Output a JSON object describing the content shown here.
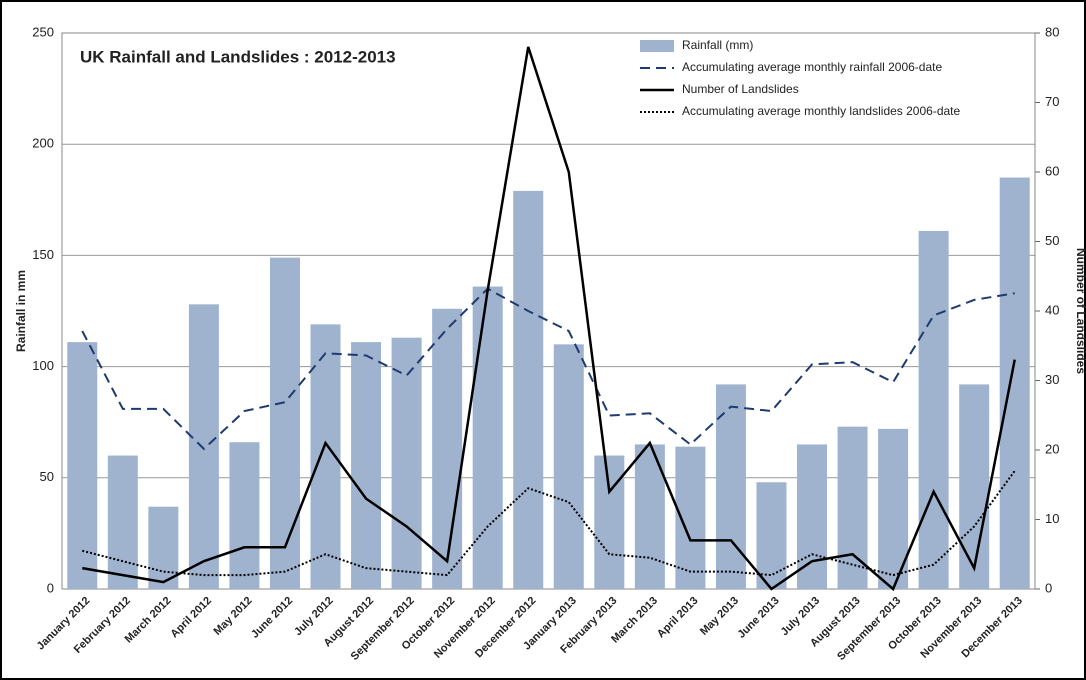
{
  "chart_data": {
    "type": "bar-line",
    "title": "UK Rainfall and Landslides : 2012-2013",
    "ylabel": "Rainfall in mm",
    "y2label": "Number of Landslides",
    "categories": [
      "January 2012",
      "February 2012",
      "March 2012",
      "April 2012",
      "May 2012",
      "June 2012",
      "July 2012",
      "August 2012",
      "September 2012",
      "October 2012",
      "November 2012",
      "December 2012",
      "January 2013",
      "February 2013",
      "March 2013",
      "April 2013",
      "May 2013",
      "June 2013",
      "July 2013",
      "August 2013",
      "September 2013",
      "October 2013",
      "November 2013",
      "December 2013"
    ],
    "series": [
      {
        "name": "Rainfall (mm)",
        "type": "bar",
        "color": "#9fb3cf",
        "axis": "y",
        "values": [
          111,
          60,
          37,
          128,
          66,
          149,
          119,
          111,
          113,
          126,
          136,
          179,
          110,
          60,
          65,
          64,
          92,
          48,
          65,
          73,
          72,
          161,
          92,
          185
        ]
      },
      {
        "name": "Accumulating average monthly rainfall 2006-date",
        "type": "line",
        "style": "dashed",
        "color": "#1f3a6e",
        "axis": "y",
        "values": [
          116,
          81,
          81,
          63,
          80,
          84,
          106,
          105,
          96,
          117,
          135,
          125,
          116,
          78,
          79,
          65,
          82,
          80,
          101,
          102,
          93,
          123,
          130,
          133
        ]
      },
      {
        "name": "Number of Landslides",
        "type": "line",
        "style": "solid",
        "color": "#000000",
        "axis": "y2",
        "values": [
          3,
          2,
          1,
          4,
          6,
          6,
          21,
          13,
          9,
          4,
          43,
          78,
          60,
          14,
          21,
          7,
          7,
          0,
          4,
          5,
          0,
          14,
          3,
          33
        ]
      },
      {
        "name": "Accumulating average monthly landslides 2006-date",
        "type": "line",
        "style": "dotted",
        "color": "#000000",
        "axis": "y2",
        "values": [
          5.5,
          4,
          2.5,
          2,
          2,
          2.5,
          5,
          3,
          2.5,
          2,
          9,
          14.5,
          12.5,
          5,
          4.5,
          2.5,
          2.5,
          2,
          5,
          3.5,
          2,
          3.5,
          9,
          17
        ]
      }
    ],
    "ylim": [
      0,
      250
    ],
    "yticks": [
      0,
      50,
      100,
      150,
      200,
      250
    ],
    "y2lim": [
      0,
      80
    ],
    "y2ticks": [
      0,
      10,
      20,
      30,
      40,
      50,
      60,
      70,
      80
    ],
    "grid": true,
    "legend": "top-right"
  }
}
